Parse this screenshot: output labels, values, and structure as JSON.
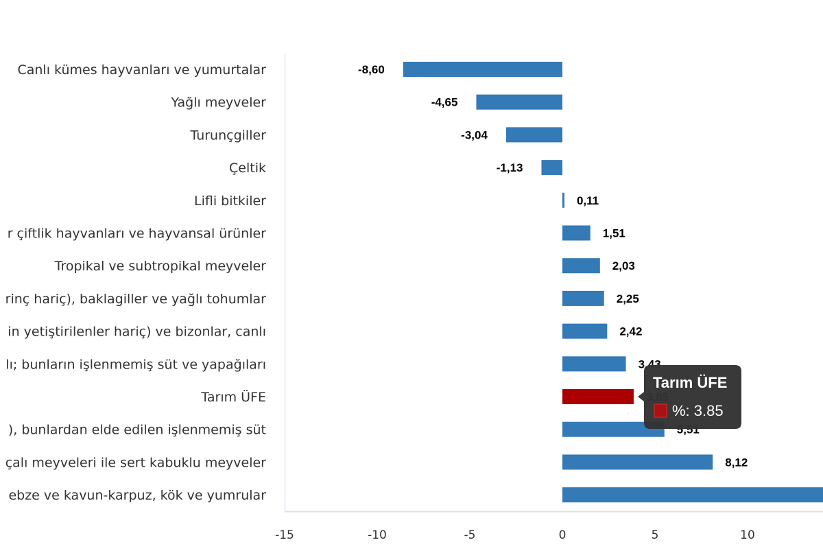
{
  "chart_data": {
    "type": "bar",
    "orientation": "horizontal",
    "categories": [
      "Canlı kümes hayvanları ve yumurtalar",
      "Yağlı meyveler",
      "Turunçgiller",
      "Çeltik",
      "Lifli bitkiler",
      "r çiftlik hayvanları ve hayvansal ürünler",
      "Tropikal ve subtropikal meyveler",
      "rinç hariç), baklagiller ve yağlı tohumlar",
      "in yetiştirilenler hariç) ve bizonlar, canlı",
      "lı; bunların işlenmemiş süt ve yapağıları",
      "Tarım ÜFE",
      "), bunlardan elde edilen işlenmemiş süt",
      "çalı meyveleri ile sert kabuklu meyveler",
      "ebze ve kavun-karpuz, kök ve yumrular"
    ],
    "values": [
      -8.6,
      -4.65,
      -3.04,
      -1.13,
      0.11,
      1.51,
      2.03,
      2.25,
      2.42,
      3.43,
      3.85,
      5.51,
      8.12,
      14.5
    ],
    "value_labels": [
      "-8,60",
      "-4,65",
      "-3,04",
      "-1,13",
      "0,11",
      "1,51",
      "2,03",
      "2,25",
      "2,42",
      "3,43",
      "3,85",
      "5,51",
      "8,12",
      ""
    ],
    "highlight_index": 10,
    "xlim": [
      -15,
      14.07
    ],
    "xticks": [
      "-15",
      "-10",
      "-5",
      "0",
      "5",
      "10"
    ],
    "xtick_values": [
      -15,
      -10,
      -5,
      0,
      5,
      10
    ],
    "grid": false,
    "colors": {
      "bar": "#337ab7",
      "highlight": "#aa0000",
      "tooltip_bg": "#333333"
    }
  },
  "tooltip": {
    "title": "Tarım ÜFE",
    "text": "%: 3.85"
  }
}
